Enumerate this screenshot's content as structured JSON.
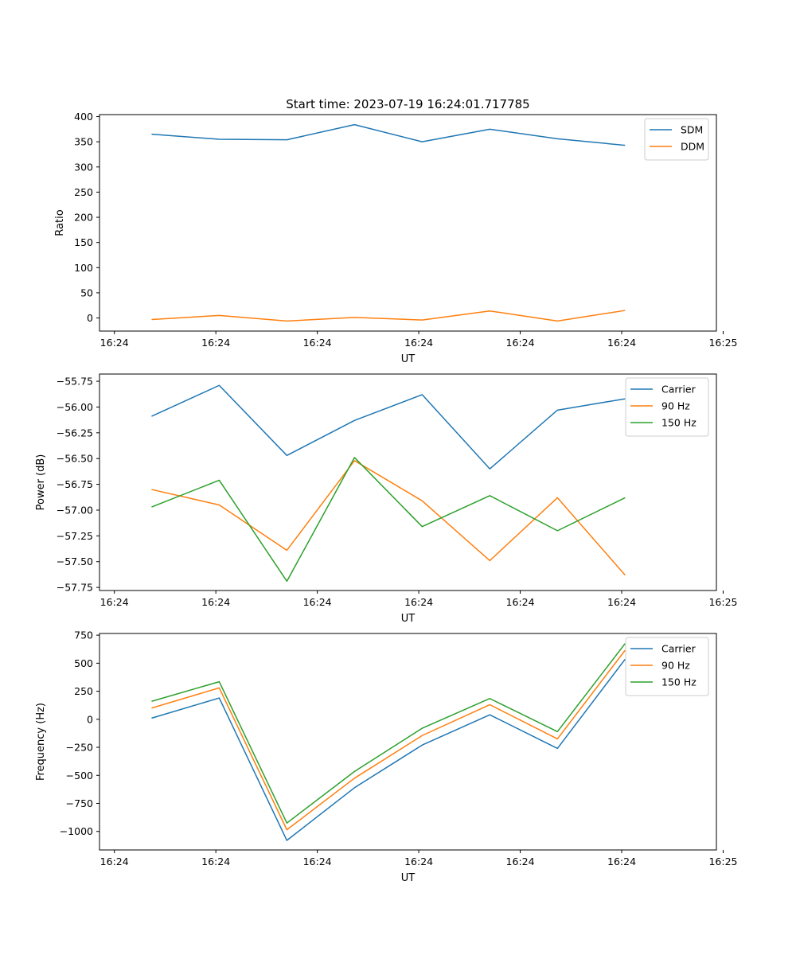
{
  "figure_title": "Start time: 2023-07-19 16:24:01.717785",
  "colors": {
    "blue": "#1f77b4",
    "orange": "#ff7f0e",
    "green": "#2ca02c"
  },
  "chart_data": [
    {
      "type": "line",
      "title": "Start time: 2023-07-19 16:24:01.717785",
      "xlabel": "UT",
      "ylabel": "Ratio",
      "x": [
        1,
        2,
        3,
        4,
        5,
        6,
        7,
        8
      ],
      "xlim": [
        0.23,
        9.35
      ],
      "ylim": [
        -26,
        404
      ],
      "x_tick_positions": [
        0.45,
        1.95,
        3.45,
        4.95,
        6.45,
        7.95,
        9.45
      ],
      "x_tick_labels": [
        "16:24",
        "16:24",
        "16:24",
        "16:24",
        "16:24",
        "16:24",
        "16:25"
      ],
      "y_ticks": [
        0,
        50,
        100,
        150,
        200,
        250,
        300,
        350,
        400
      ],
      "legend_position": "top-right",
      "series": [
        {
          "name": "SDM",
          "color": "#1f77b4",
          "values": [
            365,
            355,
            354,
            384,
            350,
            375,
            356,
            343
          ]
        },
        {
          "name": "DDM",
          "color": "#ff7f0e",
          "values": [
            -3,
            5,
            -6,
            1,
            -4,
            14,
            -6,
            15
          ]
        }
      ]
    },
    {
      "type": "line",
      "title": "",
      "xlabel": "UT",
      "ylabel": "Power (dB)",
      "x": [
        1,
        2,
        3,
        4,
        5,
        6,
        7,
        8
      ],
      "xlim": [
        0.23,
        9.35
      ],
      "ylim": [
        -57.78,
        -55.68
      ],
      "x_tick_positions": [
        0.45,
        1.95,
        3.45,
        4.95,
        6.45,
        7.95,
        9.45
      ],
      "x_tick_labels": [
        "16:24",
        "16:24",
        "16:24",
        "16:24",
        "16:24",
        "16:24",
        "16:25"
      ],
      "y_ticks": [
        -57.75,
        -57.5,
        -57.25,
        -57.0,
        -56.75,
        -56.5,
        -56.25,
        -56.0,
        -55.75
      ],
      "y_tick_labels": [
        "−57.75",
        "−57.50",
        "−57.25",
        "−57.00",
        "−56.75",
        "−56.50",
        "−56.25",
        "−56.00",
        "−55.75"
      ],
      "legend_position": "top-right",
      "series": [
        {
          "name": "Carrier",
          "color": "#1f77b4",
          "values": [
            -56.09,
            -55.79,
            -56.47,
            -56.13,
            -55.88,
            -56.6,
            -56.03,
            -55.92
          ]
        },
        {
          "name": "90 Hz",
          "color": "#ff7f0e",
          "values": [
            -56.8,
            -56.95,
            -57.39,
            -56.52,
            -56.91,
            -57.49,
            -56.88,
            -57.63
          ]
        },
        {
          "name": "150 Hz",
          "color": "#2ca02c",
          "values": [
            -56.97,
            -56.71,
            -57.69,
            -56.49,
            -57.16,
            -56.86,
            -57.2,
            -56.88
          ]
        }
      ]
    },
    {
      "type": "line",
      "title": "",
      "xlabel": "UT",
      "ylabel": "Frequency (Hz)",
      "x": [
        1,
        2,
        3,
        4,
        5,
        6,
        7,
        8
      ],
      "xlim": [
        0.23,
        9.35
      ],
      "ylim": [
        -1165,
        765
      ],
      "x_tick_positions": [
        0.45,
        1.95,
        3.45,
        4.95,
        6.45,
        7.95,
        9.45
      ],
      "x_tick_labels": [
        "16:24",
        "16:24",
        "16:24",
        "16:24",
        "16:24",
        "16:24",
        "16:25"
      ],
      "y_ticks": [
        -1000,
        -750,
        -500,
        -250,
        0,
        250,
        500,
        750
      ],
      "y_tick_labels": [
        "−1000",
        "−750",
        "−500",
        "−250",
        "0",
        "250",
        "500",
        "750"
      ],
      "legend_position": "top-right",
      "series": [
        {
          "name": "Carrier",
          "color": "#1f77b4",
          "values": [
            10,
            190,
            -1080,
            -610,
            -230,
            40,
            -260,
            535
          ]
        },
        {
          "name": "90 Hz",
          "color": "#ff7f0e",
          "values": [
            100,
            280,
            -985,
            -525,
            -145,
            130,
            -175,
            615
          ]
        },
        {
          "name": "150 Hz",
          "color": "#2ca02c",
          "values": [
            160,
            335,
            -925,
            -465,
            -80,
            185,
            -110,
            675
          ]
        }
      ]
    }
  ]
}
